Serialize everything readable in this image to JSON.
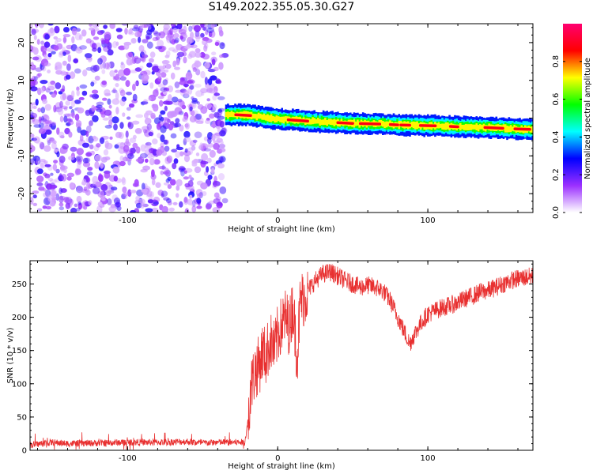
{
  "title": "S149.2022.355.05.30.G27",
  "chart_data": [
    {
      "type": "heatmap",
      "xlabel": "Height of straight line (km)",
      "ylabel": "Frequency (Hz)",
      "xlim": [
        -165,
        170
      ],
      "ylim": [
        -25,
        25
      ],
      "x_ticks": [
        -100,
        0,
        100
      ],
      "y_ticks": [
        -20,
        -10,
        0,
        10,
        20
      ],
      "colorbar": {
        "label": "Normalized spectral amplitude",
        "range": [
          0,
          1
        ],
        "ticks": [
          "0.0",
          "0.2",
          "0.4",
          "0.6",
          "0.8"
        ],
        "tick_values": [
          0.0,
          0.2,
          0.4,
          0.6,
          0.8
        ],
        "colors": [
          "#ffffff",
          "#9b30ff",
          "#0000ff",
          "#00ffff",
          "#00ff00",
          "#ffff00",
          "#ff0000",
          "#ff0070"
        ]
      },
      "noise_region": [
        -165,
        -35
      ],
      "signal_trace": {
        "x": [
          -35,
          -30,
          -20,
          -10,
          0,
          10,
          20,
          30,
          40,
          50,
          60,
          70,
          80,
          90,
          100,
          110,
          120,
          130,
          140,
          150,
          160,
          170
        ],
        "freq": [
          0.8,
          0.9,
          0.8,
          0.2,
          -0.3,
          -0.5,
          -0.8,
          -1.0,
          -1.2,
          -1.4,
          -1.5,
          -1.6,
          -1.8,
          -1.9,
          -2.0,
          -2.1,
          -2.3,
          -2.4,
          -2.5,
          -2.7,
          -2.9,
          -3.0
        ]
      }
    },
    {
      "type": "line",
      "xlabel": "Height of straight line (km)",
      "ylabel": "SNR (10 * v/v)",
      "xlim": [
        -165,
        170
      ],
      "ylim": [
        0,
        285
      ],
      "x_ticks": [
        -100,
        0,
        100
      ],
      "y_ticks": [
        0,
        50,
        100,
        150,
        200,
        250
      ],
      "color": "#e83030",
      "series": [
        {
          "x": [
            -165,
            -150,
            -140,
            -120,
            -100,
            -80,
            -60,
            -50,
            -40,
            -30,
            -22,
            -20,
            -18,
            -15,
            -12,
            -10,
            -8,
            -5,
            -2,
            0,
            3,
            5,
            8,
            10,
            13,
            15,
            18,
            20,
            25,
            30,
            35,
            40,
            45,
            50,
            55,
            60,
            65,
            70,
            75,
            80,
            85,
            88,
            90,
            95,
            100,
            105,
            110,
            115,
            120,
            125,
            130,
            135,
            140,
            145,
            150,
            155,
            160,
            165,
            170
          ],
          "y": [
            8,
            12,
            10,
            11,
            12,
            12,
            13,
            11,
            12,
            12,
            12,
            40,
            95,
            120,
            130,
            150,
            140,
            165,
            150,
            175,
            190,
            200,
            185,
            220,
            140,
            225,
            230,
            240,
            255,
            265,
            268,
            262,
            255,
            250,
            245,
            248,
            245,
            240,
            225,
            200,
            175,
            160,
            170,
            190,
            205,
            210,
            215,
            218,
            222,
            228,
            232,
            238,
            240,
            245,
            250,
            255,
            258,
            260,
            262
          ]
        }
      ]
    }
  ]
}
